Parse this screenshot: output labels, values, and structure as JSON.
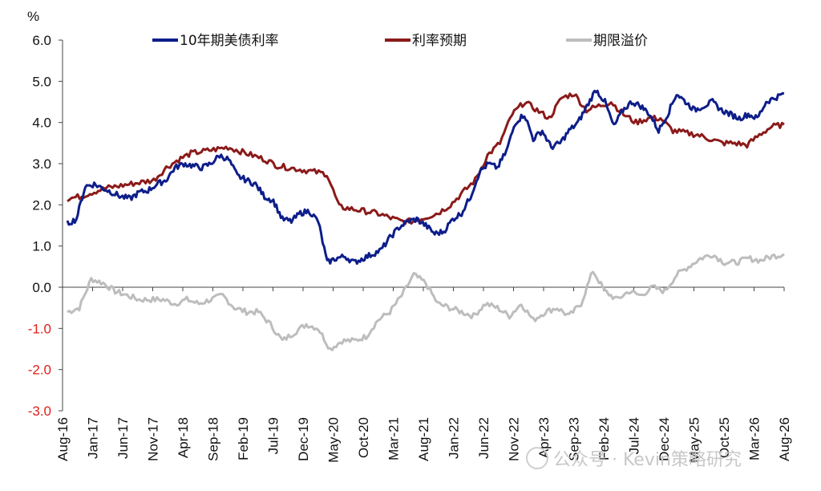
{
  "chart_data": {
    "type": "line",
    "unit": "%",
    "ylim": [
      -3.0,
      6.0
    ],
    "yticks": [
      "6.0",
      "5.0",
      "4.0",
      "3.0",
      "2.0",
      "1.0",
      "0.0",
      "-1.0",
      "-2.0",
      "-3.0"
    ],
    "ytick_values": [
      6,
      5,
      4,
      3,
      2,
      1,
      0,
      -1,
      -2,
      -3
    ],
    "negative_tick_color": "#e0201b",
    "xticks": [
      "Aug-16",
      "Jan-17",
      "Jun-17",
      "Nov-17",
      "Apr-18",
      "Sep-18",
      "Feb-19",
      "Jul-19",
      "Dec-19",
      "May-20",
      "Oct-20",
      "Mar-21",
      "Aug-21",
      "Jan-22",
      "Jun-22",
      "Nov-22",
      "Apr-23",
      "Sep-23",
      "Feb-24",
      "Jul-24",
      "Dec-24",
      "May-25",
      "Oct-25",
      "Mar-26",
      "Aug-26"
    ],
    "x_range": [
      "Aug-16",
      "Aug-26"
    ],
    "grid": false,
    "legend_position": "top",
    "series": [
      {
        "name": "10年期美债利率",
        "color": "#0d1e8a",
        "values": [
          1.55,
          1.65,
          2.45,
          2.5,
          2.4,
          2.3,
          2.2,
          2.15,
          2.3,
          2.35,
          2.5,
          2.6,
          2.9,
          3.0,
          2.95,
          2.9,
          3.0,
          3.2,
          3.1,
          2.7,
          2.6,
          2.5,
          2.2,
          2.1,
          1.65,
          1.6,
          1.8,
          1.85,
          1.6,
          0.6,
          0.7,
          0.75,
          0.6,
          0.7,
          0.8,
          0.9,
          1.2,
          1.45,
          1.6,
          1.65,
          1.5,
          1.3,
          1.35,
          1.65,
          1.8,
          2.2,
          2.8,
          3.0,
          2.9,
          3.3,
          4.0,
          4.2,
          3.6,
          3.8,
          3.4,
          3.5,
          3.8,
          4.0,
          4.4,
          4.8,
          4.5,
          3.9,
          4.3,
          4.5,
          4.4,
          4.2,
          3.8,
          4.2,
          4.7,
          4.5,
          4.3,
          4.4,
          4.5,
          4.3,
          4.2,
          4.1,
          4.2,
          4.1,
          4.5,
          4.6,
          4.7
        ],
        "values_note": ""
      },
      {
        "name": "利率预期",
        "color": "#8b1a1a",
        "values": [
          2.15,
          2.2,
          2.3,
          2.4,
          2.45,
          2.5,
          2.55,
          2.6,
          2.9,
          3.1,
          3.25,
          3.3,
          3.35,
          3.4,
          3.3,
          3.2,
          3.1,
          2.95,
          2.9,
          2.85,
          2.8,
          2.75,
          1.95,
          1.9,
          1.85,
          1.8,
          1.7,
          1.6,
          1.6,
          1.7,
          1.8,
          2.0,
          2.3,
          2.6,
          3.2,
          3.5,
          4.2,
          4.5,
          4.3,
          4.1,
          4.6,
          4.7,
          4.3,
          4.4,
          4.5,
          4.2,
          4.0,
          4.1,
          4.1,
          3.8,
          3.75,
          3.7,
          3.6,
          3.5,
          3.5,
          3.45,
          3.7,
          3.9,
          3.95
        ]
      },
      {
        "name": "期限溢价",
        "color": "#bdbdbd",
        "values": [
          -0.6,
          -0.5,
          0.2,
          0.1,
          -0.1,
          -0.2,
          -0.3,
          -0.3,
          -0.3,
          -0.4,
          -0.3,
          -0.4,
          -0.3,
          -0.2,
          -0.5,
          -0.6,
          -0.6,
          -0.9,
          -1.3,
          -1.1,
          -0.9,
          -1.0,
          -1.5,
          -1.3,
          -1.3,
          -1.2,
          -0.8,
          -0.6,
          -0.2,
          0.3,
          0.1,
          -0.4,
          -0.5,
          -0.6,
          -0.7,
          -0.4,
          -0.5,
          -0.7,
          -0.4,
          -0.8,
          -0.6,
          -0.5,
          -0.7,
          -0.4,
          0.4,
          -0.1,
          -0.3,
          -0.1,
          -0.2,
          0.0,
          -0.1,
          0.3,
          0.5,
          0.7,
          0.8,
          0.6,
          0.6,
          0.7,
          0.65,
          0.75,
          0.8
        ]
      }
    ]
  },
  "watermark": "公众号 · Kevin策略研究"
}
